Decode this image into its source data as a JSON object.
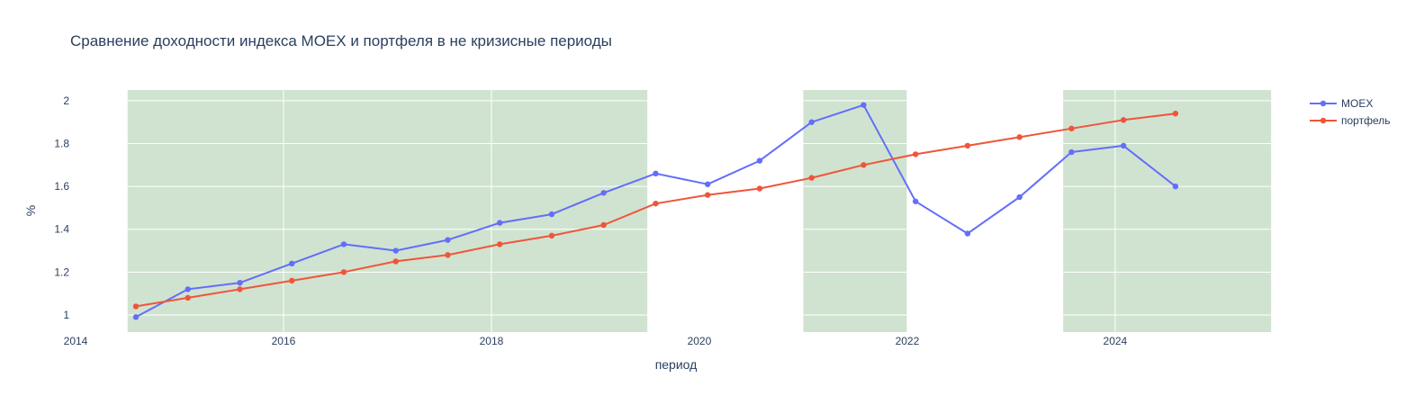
{
  "chart_data": {
    "type": "line",
    "title": "Сравнение доходности индекса MOEX и портфеля в не кризисные периоды",
    "xlabel": "период",
    "ylabel": "%",
    "x_range": [
      2014.0,
      2025.75
    ],
    "ylim": [
      0.92,
      2.05
    ],
    "x_ticks": [
      {
        "value": 2014,
        "label": "2014"
      },
      {
        "value": 2016,
        "label": "2016"
      },
      {
        "value": 2018,
        "label": "2018"
      },
      {
        "value": 2020,
        "label": "2020"
      },
      {
        "value": 2022,
        "label": "2022"
      },
      {
        "value": 2024,
        "label": "2024"
      }
    ],
    "y_ticks": [
      {
        "value": 1.0,
        "label": "1"
      },
      {
        "value": 1.2,
        "label": "1.2"
      },
      {
        "value": 1.4,
        "label": "1.4"
      },
      {
        "value": 1.6,
        "label": "1.6"
      },
      {
        "value": 1.8,
        "label": "1.8"
      },
      {
        "value": 2.0,
        "label": "2"
      }
    ],
    "grid": true,
    "legend_position": "top-right",
    "shaded_periods": [
      {
        "x0": 2014.5,
        "x1": 2019.5
      },
      {
        "x0": 2021.0,
        "x1": 2022.0
      },
      {
        "x0": 2023.5,
        "x1": 2025.5
      }
    ],
    "x": [
      2014.58,
      2015.08,
      2015.58,
      2016.08,
      2016.58,
      2017.08,
      2017.58,
      2018.08,
      2018.58,
      2019.08,
      2019.58,
      2020.08,
      2020.58,
      2021.08,
      2021.58,
      2022.08,
      2022.58,
      2023.08,
      2023.58,
      2024.08,
      2024.58
    ],
    "series": [
      {
        "name": "MOEX",
        "color": "#636efa",
        "values": [
          0.99,
          1.12,
          1.15,
          1.24,
          1.33,
          1.3,
          1.35,
          1.43,
          1.47,
          1.57,
          1.66,
          1.61,
          1.72,
          1.9,
          1.98,
          1.53,
          1.38,
          1.55,
          1.76,
          1.79,
          1.6
        ]
      },
      {
        "name": "портфель",
        "color": "#ef553b",
        "values": [
          1.04,
          1.08,
          1.12,
          1.16,
          1.2,
          1.25,
          1.28,
          1.33,
          1.37,
          1.42,
          1.52,
          1.56,
          1.59,
          1.64,
          1.7,
          1.75,
          1.79,
          1.83,
          1.87,
          1.91,
          1.94
        ]
      }
    ],
    "colors": {
      "shade": "#a2c8a2",
      "grid": "#ffffff",
      "text": "#2a3f5f"
    }
  }
}
